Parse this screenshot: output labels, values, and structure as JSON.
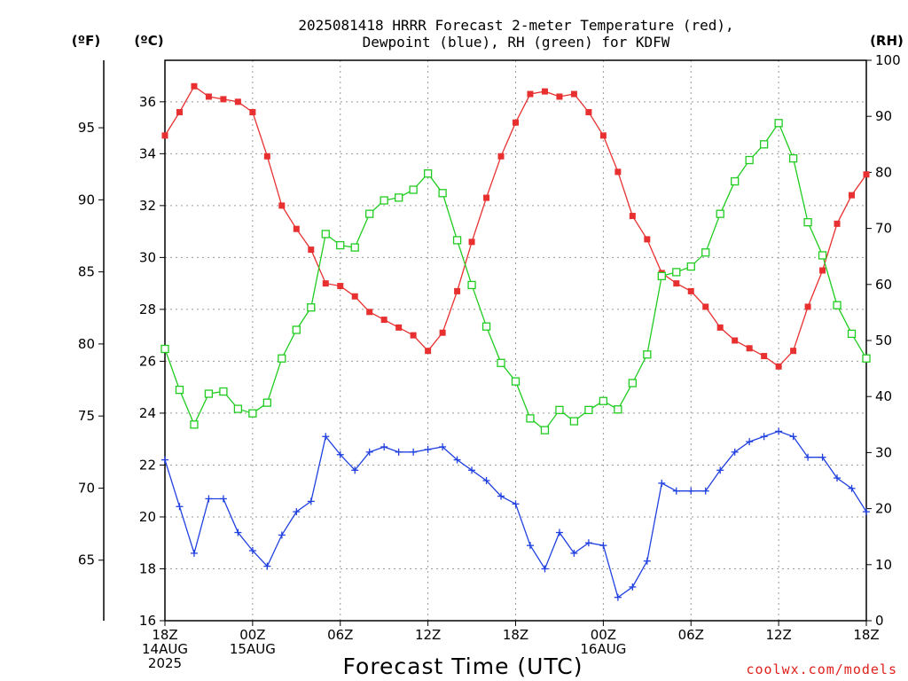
{
  "title_line1": "2025081418 HRRR Forecast 2-meter Temperature (red),",
  "title_line2": "Dewpoint (blue), RH (green) for KDFW",
  "unit_f": "(ºF)",
  "unit_c": "(ºC)",
  "unit_rh": "(RH)",
  "xlabel": "Forecast Time (UTC)",
  "credit": "coolwx.com/models",
  "colors": {
    "temperature": "#e83030",
    "dewpoint": "#2040e0",
    "rh": "#20cc20",
    "grid": "#999999"
  },
  "chart_data": {
    "type": "line",
    "title": "2025081418 HRRR Forecast 2-meter Temperature (red), Dewpoint (blue), RH (green) for KDFW",
    "xlabel": "Forecast Time (UTC)",
    "forecast_hours": [
      0,
      1,
      2,
      3,
      4,
      5,
      6,
      7,
      8,
      9,
      10,
      11,
      12,
      13,
      14,
      15,
      16,
      17,
      18,
      19,
      20,
      21,
      22,
      23,
      24,
      25,
      26,
      27,
      28,
      29,
      30,
      31,
      32,
      33,
      34,
      35,
      36,
      37,
      38,
      39,
      40,
      41,
      42,
      43,
      44,
      45,
      46,
      47,
      48
    ],
    "x_ticks": [
      {
        "hour": 0,
        "lines": [
          "18Z",
          "14AUG",
          "2025"
        ]
      },
      {
        "hour": 6,
        "lines": [
          "00Z",
          "15AUG"
        ]
      },
      {
        "hour": 12,
        "lines": [
          "06Z"
        ]
      },
      {
        "hour": 18,
        "lines": [
          "12Z"
        ]
      },
      {
        "hour": 24,
        "lines": [
          "18Z"
        ]
      },
      {
        "hour": 30,
        "lines": [
          "00Z",
          "16AUG"
        ]
      },
      {
        "hour": 36,
        "lines": [
          "06Z"
        ]
      },
      {
        "hour": 42,
        "lines": [
          "12Z"
        ]
      },
      {
        "hour": 48,
        "lines": [
          "18Z"
        ]
      }
    ],
    "celsius_axis": {
      "ylim": [
        16,
        37.6
      ],
      "ticks": [
        16,
        18,
        20,
        22,
        24,
        26,
        28,
        30,
        32,
        34,
        36
      ]
    },
    "fahrenheit_axis": {
      "ticks": [
        65,
        70,
        75,
        80,
        85,
        90,
        95
      ]
    },
    "rh_axis": {
      "ylim": [
        0,
        100
      ],
      "ticks": [
        0,
        10,
        20,
        30,
        40,
        50,
        60,
        70,
        80,
        90,
        100
      ]
    },
    "series": [
      {
        "name": "Temperature",
        "axis": "celsius",
        "marker": "filled-square",
        "values": [
          34.7,
          35.6,
          36.6,
          36.2,
          36.1,
          36.0,
          35.6,
          33.9,
          32.0,
          31.1,
          30.3,
          29.0,
          28.9,
          28.5,
          27.9,
          27.6,
          27.3,
          27.0,
          26.4,
          27.1,
          28.7,
          30.6,
          32.3,
          33.9,
          35.2,
          36.3,
          36.4,
          36.2,
          36.3,
          35.6,
          34.7,
          33.3,
          31.6,
          30.7,
          29.4,
          29.0,
          28.7,
          28.1,
          27.3,
          26.8,
          26.5,
          26.2,
          25.8,
          26.4,
          28.1,
          29.5,
          31.3,
          32.4,
          33.2
        ]
      },
      {
        "name": "Dewpoint",
        "axis": "celsius",
        "marker": "plus",
        "values": [
          22.2,
          20.4,
          18.6,
          20.7,
          20.7,
          19.4,
          18.7,
          18.1,
          19.3,
          20.2,
          20.6,
          23.1,
          22.4,
          21.8,
          22.5,
          22.7,
          22.5,
          22.5,
          22.6,
          22.7,
          22.2,
          21.8,
          21.4,
          20.8,
          20.5,
          18.9,
          18.0,
          19.4,
          18.6,
          19.0,
          18.9,
          16.9,
          17.3,
          18.3,
          21.3,
          21.0,
          21.0,
          21.0,
          21.8,
          22.5,
          22.9,
          23.1,
          23.3,
          23.1,
          22.3,
          22.3,
          21.5,
          21.1,
          20.2
        ]
      },
      {
        "name": "RH",
        "axis": "rh",
        "marker": "open-square",
        "values": [
          48.5,
          41.2,
          35.0,
          40.5,
          40.9,
          37.8,
          37.0,
          38.9,
          46.8,
          51.9,
          55.9,
          69.0,
          67.0,
          66.6,
          72.6,
          75.0,
          75.5,
          76.9,
          79.8,
          76.3,
          67.9,
          59.9,
          52.5,
          46.0,
          42.7,
          36.1,
          34.0,
          37.6,
          35.6,
          37.6,
          39.2,
          37.7,
          42.4,
          47.5,
          61.5,
          62.2,
          63.2,
          65.7,
          72.6,
          78.4,
          82.2,
          85.0,
          88.8,
          82.5,
          71.1,
          65.2,
          56.3,
          51.2,
          46.8
        ]
      }
    ]
  }
}
